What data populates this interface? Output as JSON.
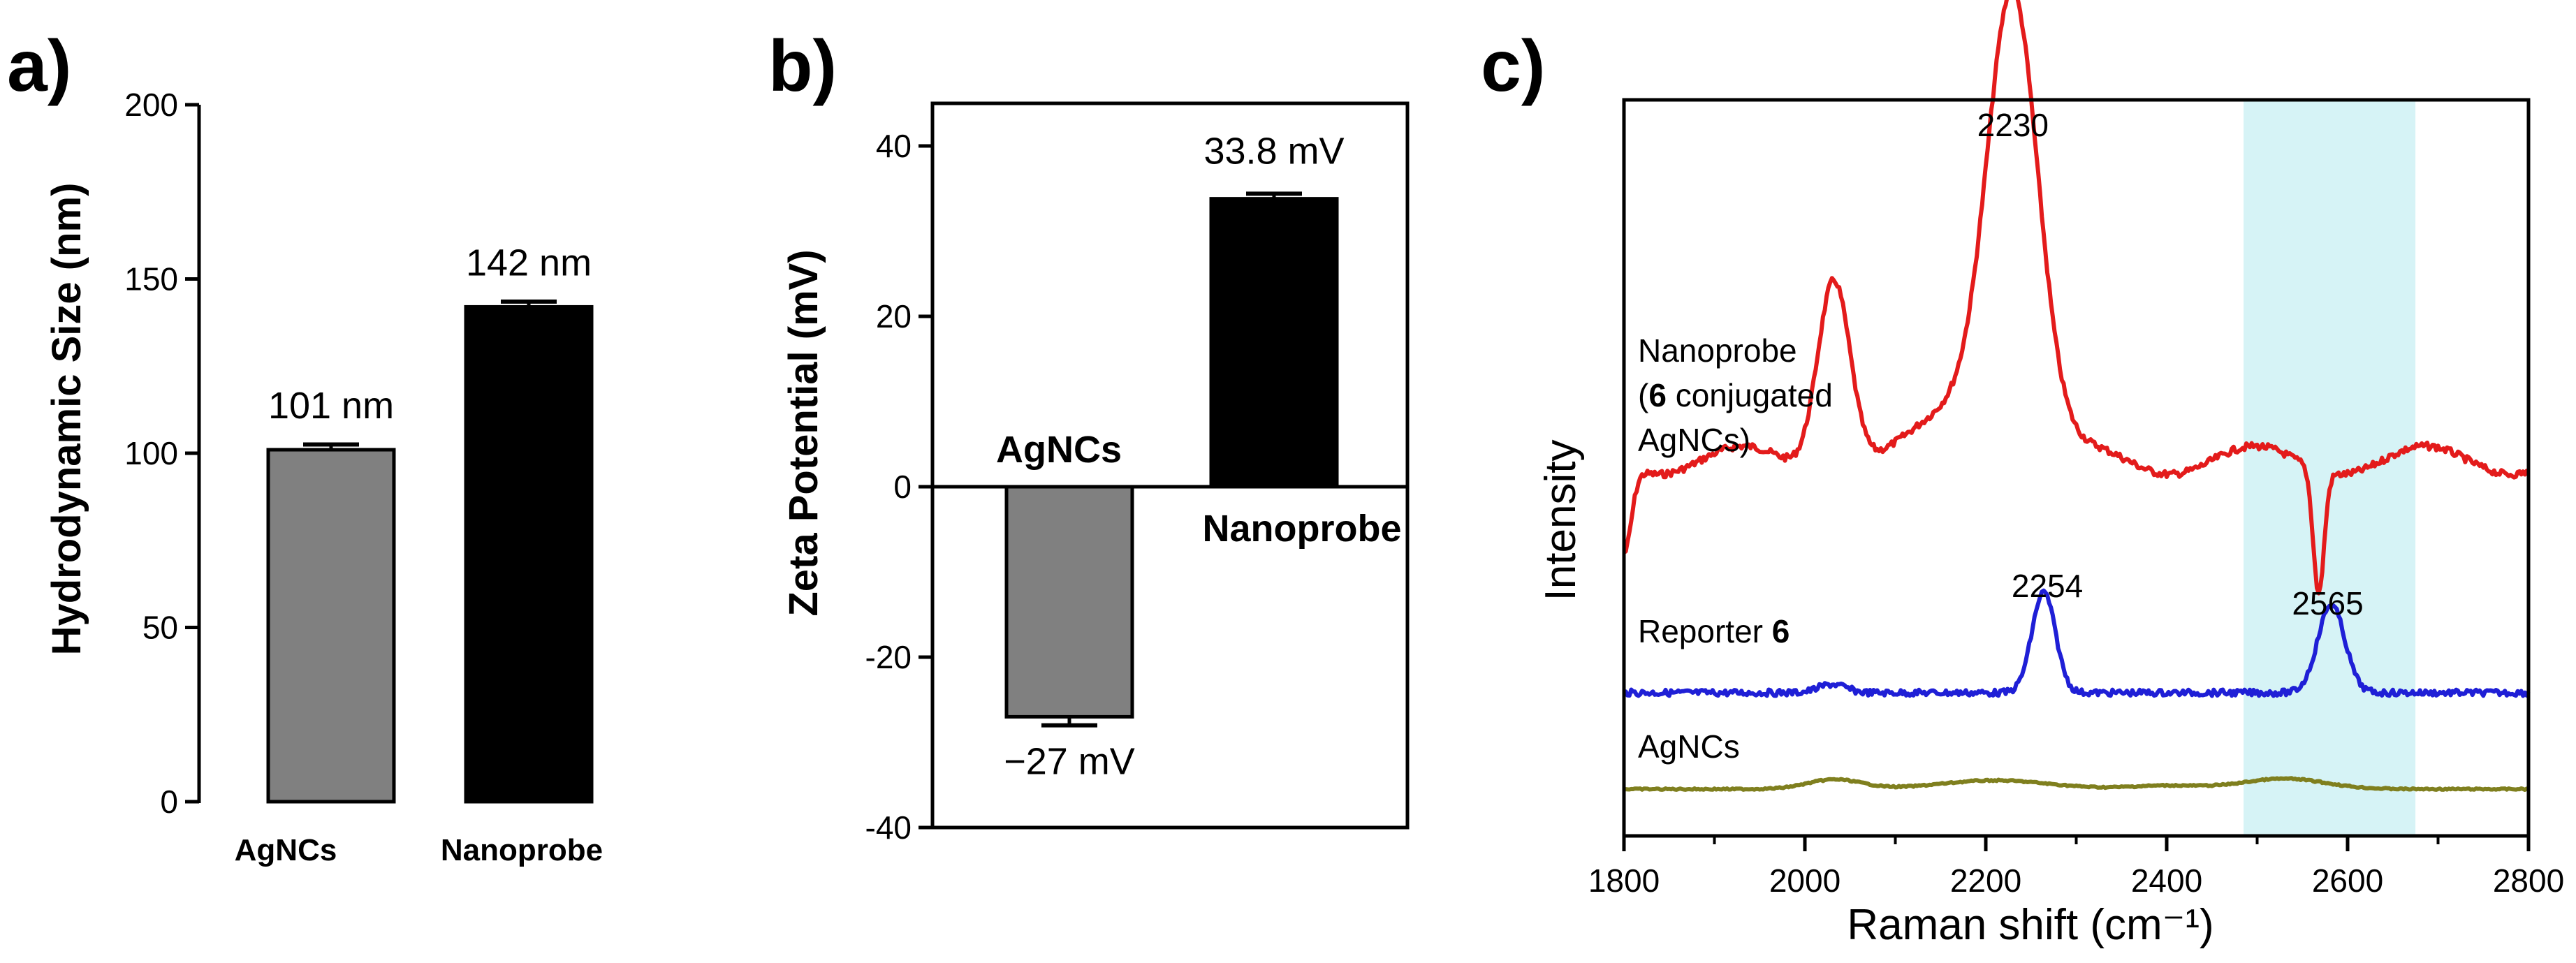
{
  "panels": {
    "a": {
      "letter": "a)",
      "ylabel": "Hydrodynamic Size (nm)",
      "ylim": [
        0,
        200
      ],
      "yticks": [
        0,
        50,
        100,
        150,
        200
      ],
      "bars": [
        {
          "category": "AgNCs",
          "value": 101,
          "error": 1.5,
          "label": "101 nm",
          "color": "#808080"
        },
        {
          "category": "Nanoprobe",
          "value": 142,
          "error": 1.5,
          "label": "142 nm",
          "color": "#000000"
        }
      ]
    },
    "b": {
      "letter": "b)",
      "ylabel": "Zeta Potential (mV)",
      "ylim": [
        -40,
        45
      ],
      "yticks": [
        -40,
        -20,
        0,
        20,
        40
      ],
      "bars": [
        {
          "category": "AgNCs",
          "value": -27,
          "error": 1,
          "label": "−27 mV",
          "color": "#808080"
        },
        {
          "category": "Nanoprobe",
          "value": 33.8,
          "error": 0.6,
          "label": "33.8 mV",
          "color": "#000000"
        }
      ]
    },
    "c": {
      "letter": "c)",
      "xlabel": "Raman shift (cm⁻¹)",
      "ylabel": "Intensity",
      "xlim": [
        1800,
        2800
      ],
      "xticks": [
        1800,
        2000,
        2200,
        2400,
        2600,
        2800
      ],
      "highlight": {
        "from": 2485,
        "to": 2675,
        "color": "#d6f3f6"
      },
      "spectra": [
        {
          "name": "Nanoprobe",
          "label_lines": [
            "Nanoprobe",
            "(",
            "6",
            " conjugated",
            "AgNCs)"
          ],
          "color": "#e31b1b",
          "peak": 2230,
          "peak_label": "2230"
        },
        {
          "name": "Reporter 6",
          "label_prefix": "Reporter ",
          "label_bold": "6",
          "color": "#1f1fd6",
          "peaks": [
            2254,
            2565
          ],
          "peak_labels": [
            "2254",
            "2565"
          ]
        },
        {
          "name": "AgNCs",
          "label": "AgNCs",
          "color": "#7f7f1e"
        }
      ]
    }
  }
}
